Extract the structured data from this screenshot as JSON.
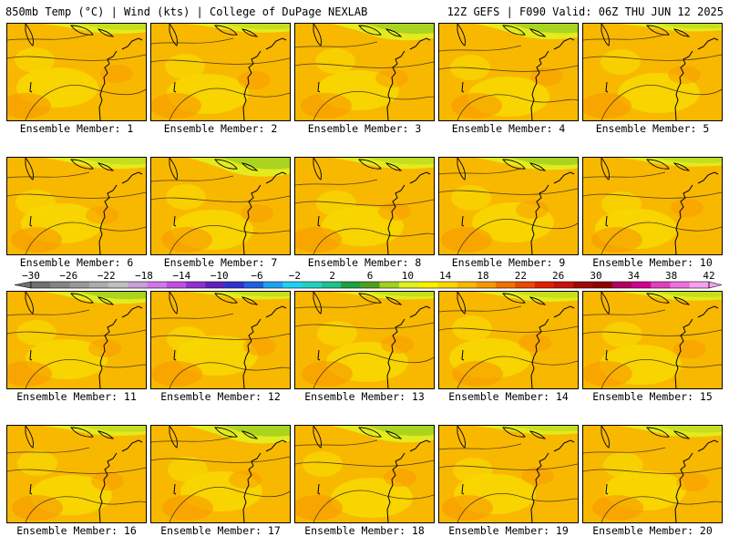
{
  "header": {
    "left": "850mb Temp (°C) | Wind (kts) | College of DuPage NEXLAB",
    "right": "12Z GEFS | F090 Valid: 06Z THU JUN 12 2025"
  },
  "members": [
    {
      "label": "Ensemble Member: 1",
      "green": 0.25
    },
    {
      "label": "Ensemble Member: 2",
      "green": 0.2
    },
    {
      "label": "Ensemble Member: 3",
      "green": 0.55
    },
    {
      "label": "Ensemble Member: 4",
      "green": 0.5
    },
    {
      "label": "Ensemble Member: 5",
      "green": 0.15
    },
    {
      "label": "Ensemble Member: 6",
      "green": 0.3
    },
    {
      "label": "Ensemble Member: 7",
      "green": 0.65
    },
    {
      "label": "Ensemble Member: 8",
      "green": 0.3
    },
    {
      "label": "Ensemble Member: 9",
      "green": 0.35
    },
    {
      "label": "Ensemble Member: 10",
      "green": 0.2
    },
    {
      "label": "Ensemble Member: 11",
      "green": 0.35
    },
    {
      "label": "Ensemble Member: 12",
      "green": 0.15
    },
    {
      "label": "Ensemble Member: 13",
      "green": 0.15
    },
    {
      "label": "Ensemble Member: 14",
      "green": 0.25
    },
    {
      "label": "Ensemble Member: 15",
      "green": 0.2
    },
    {
      "label": "Ensemble Member: 16",
      "green": 0.25
    },
    {
      "label": "Ensemble Member: 17",
      "green": 0.6
    },
    {
      "label": "Ensemble Member: 18",
      "green": 0.55
    },
    {
      "label": "Ensemble Member: 19",
      "green": 0.2
    },
    {
      "label": "Ensemble Member: 20",
      "green": 0.3
    }
  ],
  "colorbar": {
    "labels": [
      "-30",
      "-26",
      "-22",
      "-18",
      "-14",
      "-10",
      "-6",
      "-2",
      "2",
      "6",
      "10",
      "14",
      "18",
      "22",
      "26",
      "30",
      "34",
      "38",
      "42"
    ],
    "colors": [
      "#707070",
      "#848484",
      "#989898",
      "#acacac",
      "#c0c0c0",
      "#c8a0d8",
      "#d078e8",
      "#c050e0",
      "#9030d0",
      "#6020c0",
      "#3030d0",
      "#2060e0",
      "#20a0f0",
      "#20d0f0",
      "#20d0c0",
      "#20c090",
      "#20a040",
      "#50a020",
      "#a0d020",
      "#e0f020",
      "#f8f000",
      "#f8d800",
      "#f8b800",
      "#f89800",
      "#f07000",
      "#e84800",
      "#e02000",
      "#c81010",
      "#a00808",
      "#900000",
      "#b00060",
      "#d00090",
      "#e040c0",
      "#f070e0",
      "#f8a0f0"
    ]
  },
  "fill": {
    "base": "#F8B800",
    "light": "#F8D800",
    "dark": "#F89800",
    "green": "#A0D020",
    "lime": "#E0F020"
  }
}
